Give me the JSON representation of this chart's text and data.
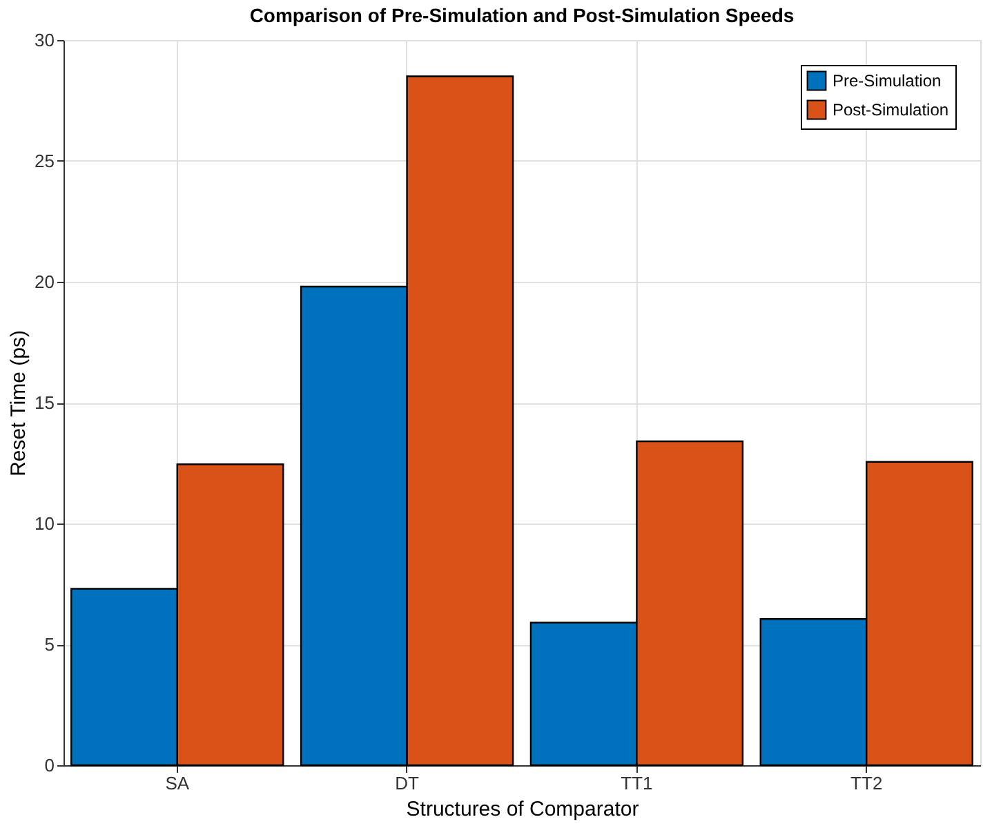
{
  "chart_data": {
    "type": "bar",
    "title": "Comparison of Pre-Simulation and Post-Simulation Speeds",
    "xlabel": "Structures of Comparator",
    "ylabel": "Reset Time (ps)",
    "categories": [
      "SA",
      "DT",
      "TT1",
      "TT2"
    ],
    "series": [
      {
        "name": "Pre-Simulation",
        "color": "#0072bd",
        "values": [
          7.3,
          19.8,
          5.9,
          6.05
        ]
      },
      {
        "name": "Post-Simulation",
        "color": "#d95319",
        "values": [
          12.45,
          28.5,
          13.4,
          12.55
        ]
      }
    ],
    "ylim": [
      0,
      30
    ],
    "yticks": [
      0,
      5,
      10,
      15,
      20,
      25,
      30
    ],
    "grid": true,
    "legend": "top right"
  }
}
